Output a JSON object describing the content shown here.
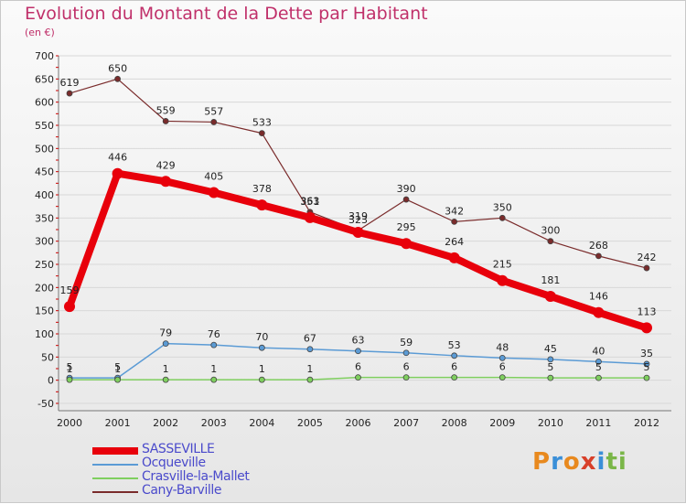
{
  "title": "Evolution du Montant de la Dette par Habitant",
  "unit": "(en €)",
  "logo": {
    "letters": [
      "P",
      "r",
      "o",
      "x",
      "i",
      "t",
      "i"
    ],
    "colors": [
      "#e8891e",
      "#3a8fd8",
      "#e8891e",
      "#d8402a",
      "#3a8fd8",
      "#7ab648",
      "#7ab648"
    ]
  },
  "chart_data": {
    "type": "line",
    "title": "Evolution du Montant de la Dette par Habitant",
    "ylabel": "(en €)",
    "xlabel": "",
    "x": [
      "2000",
      "2001",
      "2002",
      "2003",
      "2004",
      "2005",
      "2006",
      "2007",
      "2008",
      "2009",
      "2010",
      "2011",
      "2012"
    ],
    "ylim": [
      -50,
      700
    ],
    "yticks": [
      -50,
      0,
      50,
      100,
      150,
      200,
      250,
      300,
      350,
      400,
      450,
      500,
      550,
      600,
      650,
      700
    ],
    "grid": "horizontal",
    "legend_position": "bottom-left",
    "series": [
      {
        "name": "SASSEVILLE",
        "color": "#e8000b",
        "width": 8,
        "marker": 6,
        "values": [
          159,
          446,
          429,
          405,
          378,
          351,
          319,
          295,
          264,
          215,
          181,
          146,
          113
        ],
        "labels": [
          "159",
          "446",
          "429",
          "405",
          "378",
          "351",
          "319",
          "295",
          "264",
          "215",
          "181",
          "146",
          "113"
        ]
      },
      {
        "name": "Ocqueville",
        "color": "#5b9bd5",
        "width": 1.5,
        "marker": 3,
        "values": [
          5,
          5,
          79,
          76,
          70,
          67,
          63,
          59,
          53,
          48,
          45,
          40,
          35
        ],
        "labels": [
          "5",
          "5",
          "79",
          "76",
          "70",
          "67",
          "63",
          "59",
          "53",
          "48",
          "45",
          "40",
          "35"
        ]
      },
      {
        "name": "Crasville-la-Mallet",
        "color": "#7fcf5f",
        "width": 1.5,
        "marker": 3,
        "values": [
          1,
          1,
          1,
          1,
          1,
          1,
          6,
          6,
          6,
          6,
          5,
          5,
          5
        ],
        "labels": [
          "1",
          "1",
          "1",
          "1",
          "1",
          "1",
          "6",
          "6",
          "6",
          "6",
          "5",
          "5",
          "5"
        ]
      },
      {
        "name": "Cany-Barville",
        "color": "#7a2b2b",
        "width": 1.2,
        "marker": 3,
        "values": [
          619,
          650,
          559,
          557,
          533,
          363,
          323,
          390,
          342,
          350,
          300,
          268,
          242
        ],
        "labels": [
          "619",
          "650",
          "559",
          "557",
          "533",
          "363",
          "323",
          "390",
          "342",
          "350",
          "300",
          "268",
          "242"
        ]
      }
    ]
  }
}
